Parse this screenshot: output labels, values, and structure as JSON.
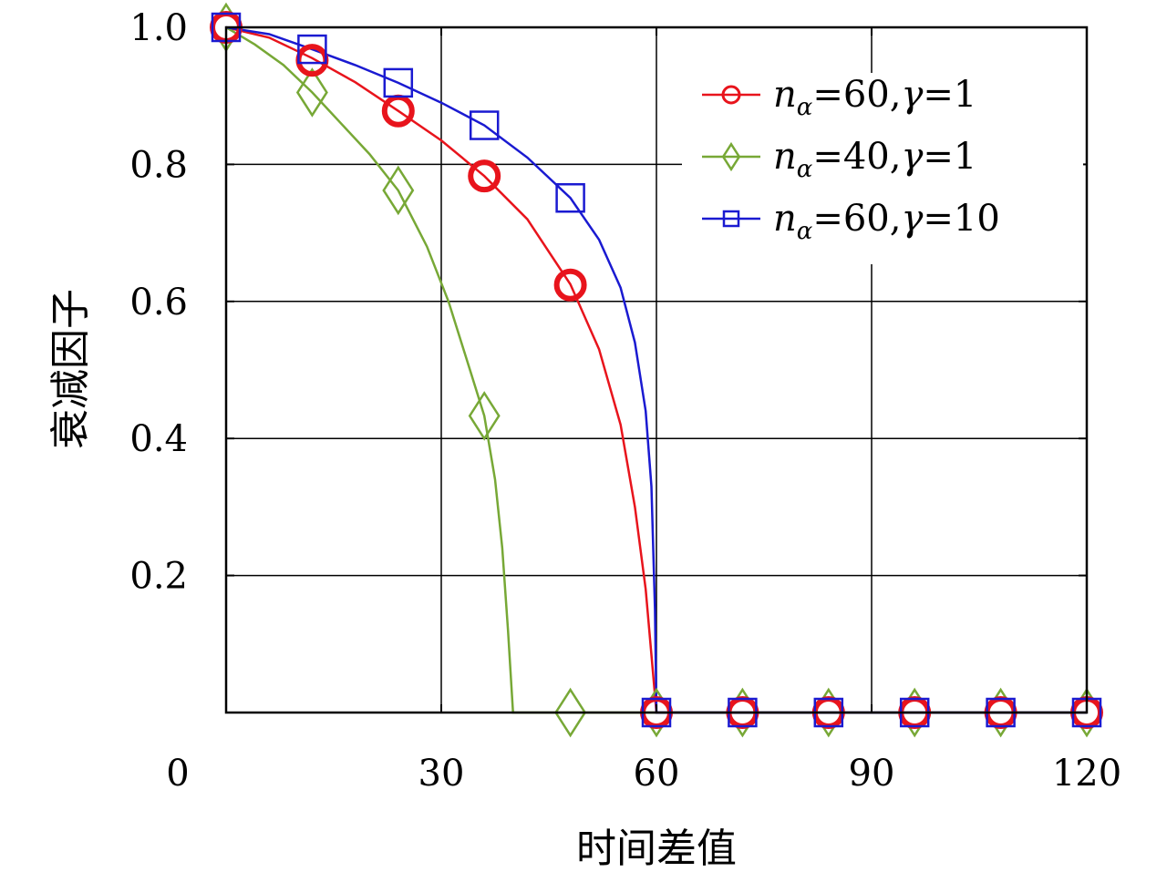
{
  "chart_data": {
    "type": "line",
    "title": "",
    "xlabel": "时间差值",
    "ylabel": "衰减因子",
    "xlim": [
      0,
      120
    ],
    "ylim": [
      0,
      1.0
    ],
    "x_ticks": [
      0,
      30,
      60,
      90,
      120
    ],
    "x_tick_labels": [
      "0",
      "30",
      "60",
      "90",
      "120"
    ],
    "y_ticks": [
      0.2,
      0.4,
      0.6,
      0.8,
      1.0
    ],
    "y_tick_labels": [
      "0.2",
      "0.4",
      "0.6",
      "0.8",
      "1.0"
    ],
    "grid": true,
    "legend_position": "top-right",
    "series": [
      {
        "name": "nα=60,γ=1",
        "legend": {
          "var": "n",
          "sub": "α",
          "eq": "=60,",
          "greek": "γ",
          "val": "=1"
        },
        "color": "#e8141c",
        "marker": "circle",
        "marker_x": [
          0,
          12,
          24,
          36,
          48,
          60,
          72,
          84,
          96,
          108,
          120
        ],
        "marker_y": [
          1.0,
          0.952,
          0.878,
          0.783,
          0.624,
          0.0,
          0.0,
          0.0,
          0.0,
          0.0,
          0.0
        ],
        "curve_x": [
          0,
          6,
          12,
          18,
          24,
          30,
          36,
          42,
          48,
          52,
          55,
          57,
          58.5,
          59.5,
          60,
          120
        ],
        "curve_y": [
          1.0,
          0.985,
          0.955,
          0.92,
          0.878,
          0.835,
          0.783,
          0.72,
          0.625,
          0.53,
          0.42,
          0.3,
          0.18,
          0.06,
          0.0,
          0.0
        ]
      },
      {
        "name": "nα=40,γ=1",
        "legend": {
          "var": "n",
          "sub": "α",
          "eq": "=40,",
          "greek": "γ",
          "val": "=1"
        },
        "color": "#77a836",
        "marker": "diamond",
        "marker_x": [
          0,
          12,
          24,
          36,
          48,
          60,
          72,
          84,
          96,
          108,
          120
        ],
        "marker_y": [
          1.0,
          0.905,
          0.762,
          0.433,
          0.0,
          0.0,
          0.0,
          0.0,
          0.0,
          0.0,
          0.0
        ],
        "curve_x": [
          0,
          4,
          8,
          12,
          16,
          20,
          24,
          28,
          31,
          34,
          36,
          37.5,
          38.5,
          39.3,
          40,
          120
        ],
        "curve_y": [
          1.0,
          0.975,
          0.945,
          0.905,
          0.86,
          0.815,
          0.762,
          0.68,
          0.6,
          0.5,
          0.433,
          0.34,
          0.24,
          0.12,
          0.0,
          0.0
        ]
      },
      {
        "name": "nα=60,γ=10",
        "legend": {
          "var": "n",
          "sub": "α",
          "eq": "=60,",
          "greek": "γ",
          "val": "=10"
        },
        "color": "#1a1ad1",
        "marker": "square",
        "marker_x": [
          0,
          12,
          24,
          36,
          48,
          60,
          72,
          84,
          96,
          108,
          120
        ],
        "marker_y": [
          1.0,
          0.968,
          0.919,
          0.857,
          0.751,
          0.0,
          0.0,
          0.0,
          0.0,
          0.0,
          0.0
        ],
        "curve_x": [
          0,
          6,
          12,
          18,
          24,
          30,
          36,
          42,
          48,
          52,
          55,
          57,
          58.5,
          59.3,
          59.8,
          60,
          120
        ],
        "curve_y": [
          1.0,
          0.99,
          0.968,
          0.945,
          0.919,
          0.89,
          0.857,
          0.81,
          0.751,
          0.69,
          0.62,
          0.54,
          0.44,
          0.33,
          0.15,
          0.0,
          0.0
        ]
      }
    ]
  }
}
